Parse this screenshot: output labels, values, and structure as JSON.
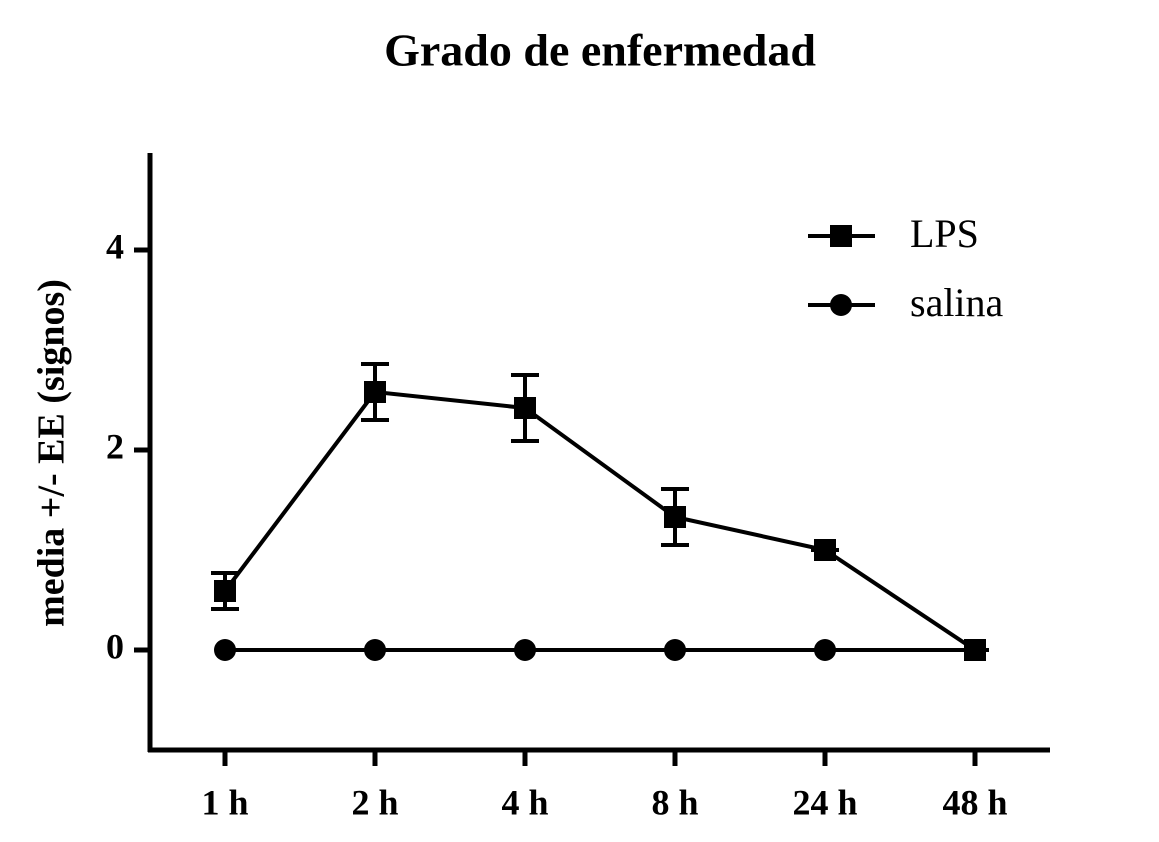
{
  "chart_data": {
    "type": "line",
    "title": "Grado de enfermedad",
    "y_label": "media  +/-  EE (signos)",
    "categories": [
      "1 h",
      "2 h",
      "4 h",
      "8 h",
      "24 h",
      "48 h"
    ],
    "series": [
      {
        "name": "LPS",
        "color": "#000000",
        "marker": "square",
        "values": [
          0.59,
          2.58,
          2.42,
          1.33,
          1.0,
          0
        ],
        "errors": [
          0.18,
          0.28,
          0.33,
          0.28,
          0,
          0
        ]
      },
      {
        "name": "salina",
        "color": "#000000",
        "marker": "circle",
        "values": [
          0,
          0,
          0,
          0,
          0,
          0
        ]
      }
    ],
    "ylim": [
      -1,
      5
    ],
    "yticks": [
      0,
      2,
      4
    ],
    "grid": false,
    "legend": "upper right"
  }
}
